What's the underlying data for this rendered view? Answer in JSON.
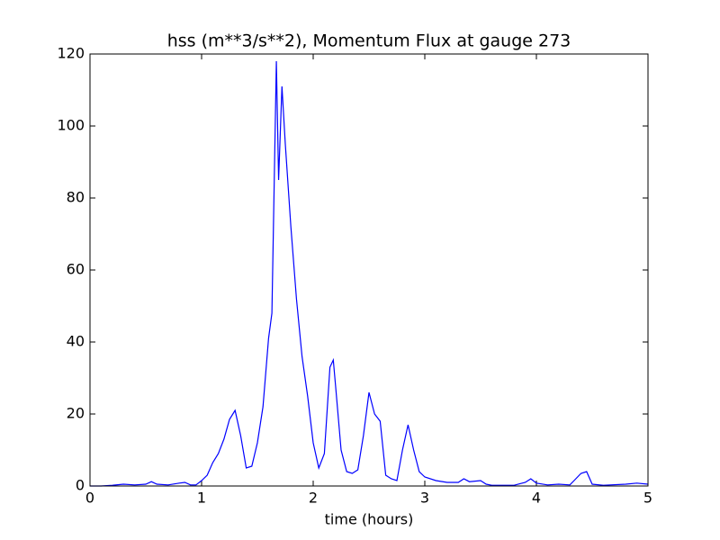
{
  "chart_data": {
    "type": "line",
    "title": "hss (m**3/s**2), Momentum Flux at gauge 273",
    "x_label": "time (hours)",
    "x": [
      0,
      0.1,
      0.2,
      0.3,
      0.4,
      0.5,
      0.55,
      0.6,
      0.7,
      0.8,
      0.85,
      0.9,
      0.95,
      1.0,
      1.05,
      1.1,
      1.15,
      1.2,
      1.25,
      1.3,
      1.35,
      1.4,
      1.45,
      1.5,
      1.55,
      1.6,
      1.63,
      1.67,
      1.69,
      1.72,
      1.75,
      1.8,
      1.85,
      1.9,
      1.95,
      2.0,
      2.05,
      2.1,
      2.15,
      2.18,
      2.2,
      2.25,
      2.3,
      2.35,
      2.4,
      2.45,
      2.5,
      2.55,
      2.6,
      2.65,
      2.7,
      2.75,
      2.8,
      2.85,
      2.9,
      2.95,
      3.0,
      3.1,
      3.2,
      3.3,
      3.35,
      3.4,
      3.5,
      3.55,
      3.6,
      3.8,
      3.9,
      3.95,
      4.0,
      4.1,
      4.2,
      4.3,
      4.4,
      4.45,
      4.5,
      4.6,
      4.8,
      4.9,
      5.0
    ],
    "series": [
      {
        "color": "#0000ff",
        "values": [
          0,
          0,
          0.2,
          0.5,
          0.3,
          0.5,
          1.2,
          0.5,
          0.3,
          0.8,
          1,
          0.3,
          0.3,
          1.5,
          3,
          6.5,
          9,
          13,
          18.5,
          21,
          14,
          5,
          5.5,
          12,
          22,
          41,
          48,
          118,
          85,
          111,
          95,
          72,
          52,
          36,
          25,
          12,
          5,
          9,
          33,
          35,
          28,
          10,
          4,
          3.5,
          4.5,
          14,
          26,
          20,
          18,
          3,
          2,
          1.5,
          10,
          17,
          10,
          4,
          2.5,
          1.5,
          1,
          1,
          2,
          1.2,
          1.5,
          0.5,
          0.2,
          0.2,
          1,
          2,
          0.8,
          0.3,
          0.5,
          0.3,
          3.5,
          4,
          0.5,
          0.2,
          0.5,
          0.8,
          0.5
        ]
      }
    ],
    "reference_line": {
      "y": 0,
      "color": "#000000",
      "dashed": true
    },
    "xlim": [
      0,
      5
    ],
    "xticks": [
      0,
      1,
      2,
      3,
      4,
      5
    ],
    "ylim": [
      0,
      120
    ],
    "yticks": [
      0,
      20,
      40,
      60,
      80,
      100,
      120
    ]
  }
}
